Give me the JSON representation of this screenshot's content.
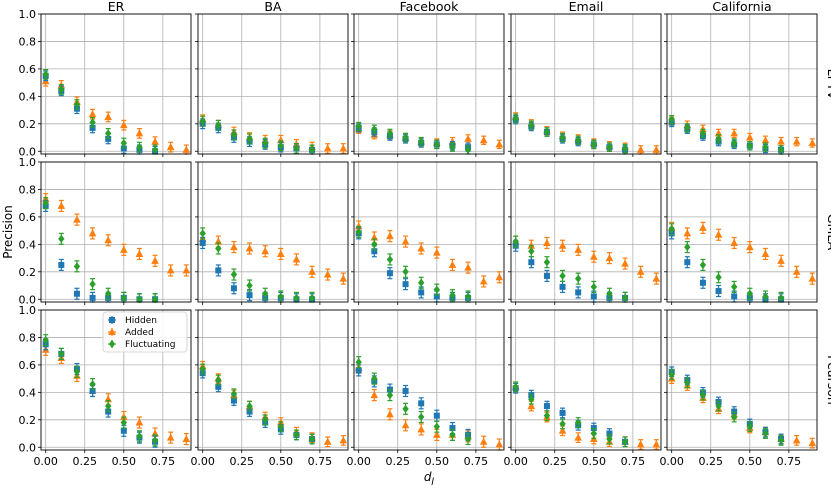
{
  "chart_data": {
    "type": "scatter",
    "x_ticks": [
      "0.00",
      "0.25",
      "0.50",
      "0.75"
    ],
    "y_ticks": [
      "0.0",
      "0.2",
      "0.4",
      "0.6",
      "0.8",
      "1.0"
    ],
    "xlabel": "d_J",
    "ylabel": "Precision",
    "xlim": [
      -0.03,
      0.93
    ],
    "ylim": [
      -0.02,
      1.0
    ],
    "grid": true,
    "columns": [
      "ER",
      "BA",
      "Facebook",
      "Email",
      "California"
    ],
    "rows": [
      "LPTV",
      "GMLA",
      "Pearson"
    ],
    "legend": {
      "placement": "top-left of panel Pearson/ER",
      "entries": [
        "Hidden",
        "Added",
        "Fluctuating"
      ]
    },
    "series_style": [
      {
        "name": "Hidden",
        "color": "#1f77b4",
        "marker": "square"
      },
      {
        "name": "Added",
        "color": "#ff7f0e",
        "marker": "triangle"
      },
      {
        "name": "Fluctuating",
        "color": "#2ca02c",
        "marker": "diamond"
      }
    ],
    "x": {
      "Hidden": [
        0.0,
        0.1,
        0.2,
        0.3,
        0.4,
        0.5,
        0.6,
        0.7
      ],
      "Added": [
        0.0,
        0.1,
        0.2,
        0.3,
        0.4,
        0.5,
        0.6,
        0.7,
        0.8,
        0.9
      ],
      "Fluctuating": [
        0.0,
        0.1,
        0.2,
        0.3,
        0.4,
        0.5,
        0.6,
        0.7
      ]
    },
    "panels": [
      {
        "row": "LPTV",
        "col": "ER",
        "Hidden": [
          0.55,
          0.44,
          0.31,
          0.17,
          0.09,
          0.02,
          0.01,
          0.0
        ],
        "Added": [
          0.51,
          0.48,
          0.36,
          0.27,
          0.25,
          0.19,
          0.13,
          0.07,
          0.03,
          0.01
        ],
        "Fluctuating": [
          0.56,
          0.45,
          0.34,
          0.21,
          0.13,
          0.06,
          0.03,
          0.01
        ],
        "err": 0.035
      },
      {
        "row": "LPTV",
        "col": "BA",
        "Hidden": [
          0.2,
          0.17,
          0.1,
          0.07,
          0.05,
          0.03,
          0.02,
          0.01
        ],
        "Added": [
          0.23,
          0.19,
          0.14,
          0.1,
          0.08,
          0.08,
          0.05,
          0.03,
          0.02,
          0.02
        ],
        "Fluctuating": [
          0.22,
          0.19,
          0.12,
          0.09,
          0.06,
          0.04,
          0.02,
          0.01
        ],
        "err": 0.035
      },
      {
        "row": "LPTV",
        "col": "Facebook",
        "Hidden": [
          0.17,
          0.14,
          0.11,
          0.09,
          0.06,
          0.05,
          0.04,
          0.03
        ],
        "Added": [
          0.16,
          0.12,
          0.12,
          0.1,
          0.07,
          0.06,
          0.07,
          0.09,
          0.08,
          0.05
        ],
        "Fluctuating": [
          0.18,
          0.16,
          0.13,
          0.1,
          0.07,
          0.05,
          0.03,
          0.01
        ],
        "err": 0.03
      },
      {
        "row": "LPTV",
        "col": "Email",
        "Hidden": [
          0.23,
          0.18,
          0.14,
          0.09,
          0.07,
          0.05,
          0.03,
          0.01
        ],
        "Added": [
          0.25,
          0.2,
          0.15,
          0.11,
          0.09,
          0.06,
          0.04,
          0.03,
          0.01,
          0.01
        ],
        "Fluctuating": [
          0.24,
          0.19,
          0.14,
          0.1,
          0.08,
          0.05,
          0.03,
          0.02
        ],
        "err": 0.03
      },
      {
        "row": "LPTV",
        "col": "California",
        "Hidden": [
          0.21,
          0.16,
          0.11,
          0.07,
          0.05,
          0.04,
          0.02,
          0.01
        ],
        "Added": [
          0.22,
          0.19,
          0.16,
          0.13,
          0.13,
          0.1,
          0.08,
          0.07,
          0.07,
          0.06
        ],
        "Fluctuating": [
          0.23,
          0.17,
          0.13,
          0.09,
          0.06,
          0.04,
          0.03,
          0.01
        ],
        "err": 0.03
      },
      {
        "row": "GMLA",
        "col": "ER",
        "Hidden": [
          0.68,
          0.25,
          0.04,
          0.01,
          0.01,
          0.01,
          0.0,
          0.0
        ],
        "Added": [
          0.73,
          0.68,
          0.58,
          0.48,
          0.43,
          0.36,
          0.33,
          0.28,
          0.21,
          0.21
        ],
        "Fluctuating": [
          0.7,
          0.44,
          0.24,
          0.11,
          0.04,
          0.01,
          0.0,
          0.0
        ],
        "err": 0.04
      },
      {
        "row": "GMLA",
        "col": "BA",
        "Hidden": [
          0.41,
          0.21,
          0.08,
          0.03,
          0.01,
          0.01,
          0.0,
          0.0
        ],
        "Added": [
          0.44,
          0.42,
          0.38,
          0.37,
          0.35,
          0.33,
          0.29,
          0.2,
          0.18,
          0.15
        ],
        "Fluctuating": [
          0.48,
          0.37,
          0.18,
          0.1,
          0.04,
          0.02,
          0.01,
          0.01
        ],
        "err": 0.04
      },
      {
        "row": "GMLA",
        "col": "Facebook",
        "Hidden": [
          0.48,
          0.35,
          0.19,
          0.11,
          0.05,
          0.02,
          0.01,
          0.01
        ],
        "Added": [
          0.53,
          0.45,
          0.46,
          0.42,
          0.37,
          0.34,
          0.25,
          0.23,
          0.13,
          0.16
        ],
        "Fluctuating": [
          0.49,
          0.4,
          0.29,
          0.2,
          0.12,
          0.07,
          0.03,
          0.02
        ],
        "err": 0.04
      },
      {
        "row": "GMLA",
        "col": "Email",
        "Hidden": [
          0.39,
          0.27,
          0.17,
          0.09,
          0.05,
          0.02,
          0.01,
          0.01
        ],
        "Added": [
          0.42,
          0.39,
          0.41,
          0.39,
          0.36,
          0.31,
          0.3,
          0.26,
          0.2,
          0.15
        ],
        "Fluctuating": [
          0.42,
          0.35,
          0.27,
          0.17,
          0.15,
          0.09,
          0.04,
          0.01
        ],
        "err": 0.04
      },
      {
        "row": "GMLA",
        "col": "California",
        "Hidden": [
          0.48,
          0.27,
          0.12,
          0.06,
          0.02,
          0.01,
          0.0,
          0.0
        ],
        "Added": [
          0.52,
          0.48,
          0.52,
          0.47,
          0.41,
          0.38,
          0.33,
          0.28,
          0.2,
          0.15
        ],
        "Fluctuating": [
          0.51,
          0.38,
          0.25,
          0.16,
          0.09,
          0.04,
          0.02,
          0.01
        ],
        "err": 0.04
      },
      {
        "row": "Pearson",
        "col": "ER",
        "Hidden": [
          0.75,
          0.68,
          0.57,
          0.41,
          0.26,
          0.12,
          0.07,
          0.04
        ],
        "Added": [
          0.71,
          0.65,
          0.52,
          0.41,
          0.35,
          0.22,
          0.18,
          0.1,
          0.07,
          0.06
        ],
        "Fluctuating": [
          0.78,
          0.68,
          0.55,
          0.46,
          0.3,
          0.18,
          0.08,
          0.05
        ],
        "err": 0.04
      },
      {
        "row": "Pearson",
        "col": "BA",
        "Hidden": [
          0.54,
          0.44,
          0.34,
          0.26,
          0.18,
          0.13,
          0.09,
          0.06
        ],
        "Added": [
          0.59,
          0.5,
          0.38,
          0.3,
          0.22,
          0.18,
          0.11,
          0.07,
          0.04,
          0.05
        ],
        "Fluctuating": [
          0.57,
          0.49,
          0.39,
          0.3,
          0.2,
          0.15,
          0.09,
          0.06
        ],
        "err": 0.035
      },
      {
        "row": "Pearson",
        "col": "Facebook",
        "Hidden": [
          0.56,
          0.48,
          0.42,
          0.41,
          0.32,
          0.23,
          0.14,
          0.09
        ],
        "Added": [
          0.58,
          0.38,
          0.24,
          0.16,
          0.13,
          0.09,
          0.09,
          0.08,
          0.04,
          0.02
        ],
        "Fluctuating": [
          0.62,
          0.5,
          0.38,
          0.28,
          0.22,
          0.15,
          0.09,
          0.06
        ],
        "err": 0.04
      },
      {
        "row": "Pearson",
        "col": "Email",
        "Hidden": [
          0.43,
          0.38,
          0.3,
          0.25,
          0.16,
          0.14,
          0.1,
          0.04
        ],
        "Added": [
          0.44,
          0.3,
          0.22,
          0.12,
          0.07,
          0.06,
          0.04,
          0.04,
          0.02,
          0.02
        ],
        "Fluctuating": [
          0.44,
          0.35,
          0.23,
          0.17,
          0.18,
          0.1,
          0.06,
          0.04
        ],
        "err": 0.035
      },
      {
        "row": "Pearson",
        "col": "California",
        "Hidden": [
          0.55,
          0.49,
          0.4,
          0.33,
          0.26,
          0.17,
          0.11,
          0.06
        ],
        "Added": [
          0.5,
          0.45,
          0.36,
          0.28,
          0.24,
          0.14,
          0.11,
          0.06,
          0.05,
          0.03
        ],
        "Fluctuating": [
          0.53,
          0.47,
          0.38,
          0.3,
          0.22,
          0.15,
          0.1,
          0.05
        ],
        "err": 0.035
      }
    ]
  }
}
